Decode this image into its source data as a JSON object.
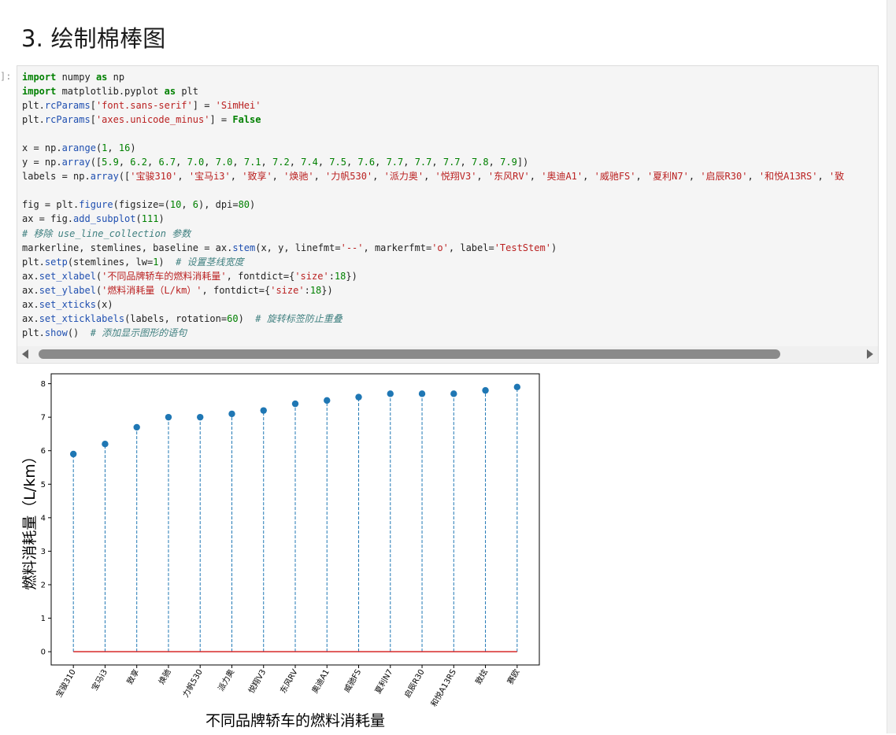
{
  "heading": "3. 绘制棉棒图",
  "prompt": "]:",
  "code_lines": [
    [
      {
        "t": "import",
        "c": "kw"
      },
      {
        "t": " numpy "
      },
      {
        "t": "as",
        "c": "kw"
      },
      {
        "t": " np"
      }
    ],
    [
      {
        "t": "import",
        "c": "kw"
      },
      {
        "t": " matplotlib.pyplot "
      },
      {
        "t": "as",
        "c": "kw"
      },
      {
        "t": " plt"
      }
    ],
    [
      {
        "t": "plt."
      },
      {
        "t": "rcParams",
        "c": "fn"
      },
      {
        "t": "["
      },
      {
        "t": "'font.sans-serif'",
        "c": "st"
      },
      {
        "t": "] = "
      },
      {
        "t": "'SimHei'",
        "c": "st"
      }
    ],
    [
      {
        "t": "plt."
      },
      {
        "t": "rcParams",
        "c": "fn"
      },
      {
        "t": "["
      },
      {
        "t": "'axes.unicode_minus'",
        "c": "st"
      },
      {
        "t": "] = "
      },
      {
        "t": "False",
        "c": "kw"
      }
    ],
    [],
    [
      {
        "t": "x = np."
      },
      {
        "t": "arange",
        "c": "fn"
      },
      {
        "t": "("
      },
      {
        "t": "1",
        "c": "nm"
      },
      {
        "t": ", "
      },
      {
        "t": "16",
        "c": "nm"
      },
      {
        "t": ")"
      }
    ],
    [
      {
        "t": "y = np."
      },
      {
        "t": "array",
        "c": "fn"
      },
      {
        "t": "(["
      },
      {
        "t": "5.9",
        "c": "nm"
      },
      {
        "t": ", "
      },
      {
        "t": "6.2",
        "c": "nm"
      },
      {
        "t": ", "
      },
      {
        "t": "6.7",
        "c": "nm"
      },
      {
        "t": ", "
      },
      {
        "t": "7.0",
        "c": "nm"
      },
      {
        "t": ", "
      },
      {
        "t": "7.0",
        "c": "nm"
      },
      {
        "t": ", "
      },
      {
        "t": "7.1",
        "c": "nm"
      },
      {
        "t": ", "
      },
      {
        "t": "7.2",
        "c": "nm"
      },
      {
        "t": ", "
      },
      {
        "t": "7.4",
        "c": "nm"
      },
      {
        "t": ", "
      },
      {
        "t": "7.5",
        "c": "nm"
      },
      {
        "t": ", "
      },
      {
        "t": "7.6",
        "c": "nm"
      },
      {
        "t": ", "
      },
      {
        "t": "7.7",
        "c": "nm"
      },
      {
        "t": ", "
      },
      {
        "t": "7.7",
        "c": "nm"
      },
      {
        "t": ", "
      },
      {
        "t": "7.7",
        "c": "nm"
      },
      {
        "t": ", "
      },
      {
        "t": "7.8",
        "c": "nm"
      },
      {
        "t": ", "
      },
      {
        "t": "7.9",
        "c": "nm"
      },
      {
        "t": "])"
      }
    ],
    [
      {
        "t": "labels = np."
      },
      {
        "t": "array",
        "c": "fn"
      },
      {
        "t": "(["
      },
      {
        "t": "'宝骏310'",
        "c": "st"
      },
      {
        "t": ", "
      },
      {
        "t": "'宝马i3'",
        "c": "st"
      },
      {
        "t": ", "
      },
      {
        "t": "'致享'",
        "c": "st"
      },
      {
        "t": ", "
      },
      {
        "t": "'焕驰'",
        "c": "st"
      },
      {
        "t": ", "
      },
      {
        "t": "'力帆530'",
        "c": "st"
      },
      {
        "t": ", "
      },
      {
        "t": "'派力奥'",
        "c": "st"
      },
      {
        "t": ", "
      },
      {
        "t": "'悦翔V3'",
        "c": "st"
      },
      {
        "t": ", "
      },
      {
        "t": "'东风RV'",
        "c": "st"
      },
      {
        "t": ", "
      },
      {
        "t": "'奥迪A1'",
        "c": "st"
      },
      {
        "t": ", "
      },
      {
        "t": "'威驰FS'",
        "c": "st"
      },
      {
        "t": ", "
      },
      {
        "t": "'夏利N7'",
        "c": "st"
      },
      {
        "t": ", "
      },
      {
        "t": "'启辰R30'",
        "c": "st"
      },
      {
        "t": ", "
      },
      {
        "t": "'和悦A13RS'",
        "c": "st"
      },
      {
        "t": ", "
      },
      {
        "t": "'致",
        "c": "st"
      }
    ],
    [],
    [
      {
        "t": "fig = plt."
      },
      {
        "t": "figure",
        "c": "fn"
      },
      {
        "t": "(figsize=("
      },
      {
        "t": "10",
        "c": "nm"
      },
      {
        "t": ", "
      },
      {
        "t": "6",
        "c": "nm"
      },
      {
        "t": "), dpi="
      },
      {
        "t": "80",
        "c": "nm"
      },
      {
        "t": ")"
      }
    ],
    [
      {
        "t": "ax = fig."
      },
      {
        "t": "add_subplot",
        "c": "fn"
      },
      {
        "t": "("
      },
      {
        "t": "111",
        "c": "nm"
      },
      {
        "t": ")"
      }
    ],
    [
      {
        "t": "# 移除 use_line_collection 参数",
        "c": "cm"
      }
    ],
    [
      {
        "t": "markerline, stemlines, baseline = ax."
      },
      {
        "t": "stem",
        "c": "fn"
      },
      {
        "t": "(x, y, linefmt="
      },
      {
        "t": "'--'",
        "c": "st"
      },
      {
        "t": ", markerfmt="
      },
      {
        "t": "'o'",
        "c": "st"
      },
      {
        "t": ", label="
      },
      {
        "t": "'TestStem'",
        "c": "st"
      },
      {
        "t": ")"
      }
    ],
    [
      {
        "t": "plt."
      },
      {
        "t": "setp",
        "c": "fn"
      },
      {
        "t": "(stemlines, lw="
      },
      {
        "t": "1",
        "c": "nm"
      },
      {
        "t": ")  "
      },
      {
        "t": "# 设置茎线宽度",
        "c": "cm"
      }
    ],
    [
      {
        "t": "ax."
      },
      {
        "t": "set_xlabel",
        "c": "fn"
      },
      {
        "t": "("
      },
      {
        "t": "'不同品牌轿车的燃料消耗量'",
        "c": "st"
      },
      {
        "t": ", fontdict={"
      },
      {
        "t": "'size'",
        "c": "st"
      },
      {
        "t": ":"
      },
      {
        "t": "18",
        "c": "nm"
      },
      {
        "t": "})"
      }
    ],
    [
      {
        "t": "ax."
      },
      {
        "t": "set_ylabel",
        "c": "fn"
      },
      {
        "t": "("
      },
      {
        "t": "'燃料消耗量（L/km）'",
        "c": "st"
      },
      {
        "t": ", fontdict={"
      },
      {
        "t": "'size'",
        "c": "st"
      },
      {
        "t": ":"
      },
      {
        "t": "18",
        "c": "nm"
      },
      {
        "t": "})"
      }
    ],
    [
      {
        "t": "ax."
      },
      {
        "t": "set_xticks",
        "c": "fn"
      },
      {
        "t": "(x)"
      }
    ],
    [
      {
        "t": "ax."
      },
      {
        "t": "set_xticklabels",
        "c": "fn"
      },
      {
        "t": "(labels, rotation="
      },
      {
        "t": "60",
        "c": "nm"
      },
      {
        "t": ")  "
      },
      {
        "t": "# 旋转标签防止重叠",
        "c": "cm"
      }
    ],
    [
      {
        "t": "plt."
      },
      {
        "t": "show",
        "c": "fn"
      },
      {
        "t": "()  "
      },
      {
        "t": "# 添加显示图形的语句",
        "c": "cm"
      }
    ]
  ],
  "chart_data": {
    "type": "stem",
    "x": [
      1,
      2,
      3,
      4,
      5,
      6,
      7,
      8,
      9,
      10,
      11,
      12,
      13,
      14,
      15
    ],
    "values": [
      5.9,
      6.2,
      6.7,
      7.0,
      7.0,
      7.1,
      7.2,
      7.4,
      7.5,
      7.6,
      7.7,
      7.7,
      7.7,
      7.8,
      7.9
    ],
    "tick_labels": [
      "宝骏310",
      "宝马i3",
      "致享",
      "焕驰",
      "力帆530",
      "派力奥",
      "悦翔V3",
      "东风RV",
      "奥迪A1",
      "威驰FS",
      "夏利N7",
      "启辰R30",
      "和悦A13RS",
      "致炫",
      "赛欧"
    ],
    "yticks": [
      0,
      1,
      2,
      3,
      4,
      5,
      6,
      7,
      8
    ],
    "xlabel": "不同品牌轿车的燃料消耗量",
    "ylabel": "燃料消耗量（L/km）",
    "title": "",
    "ylim": [
      -0.3955,
      8.2955
    ],
    "xlim": [
      0.3,
      15.7
    ],
    "linefmt": "--",
    "markerfmt": "o",
    "stem_color": "#1f77b4",
    "baseline_color": "#d62728"
  }
}
